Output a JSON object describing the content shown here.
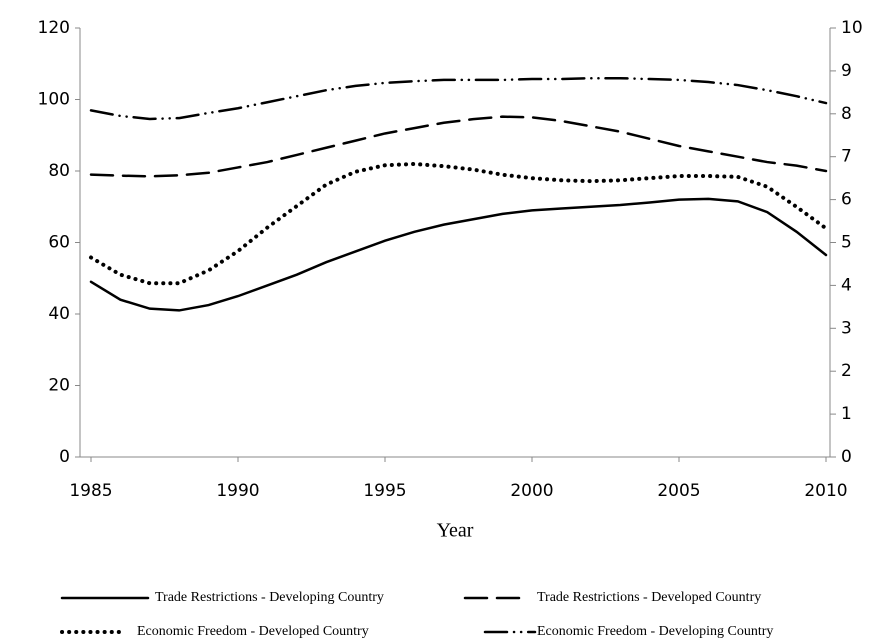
{
  "chart_data": {
    "type": "line",
    "x_label": "Year",
    "x": [
      1985,
      1986,
      1987,
      1988,
      1989,
      1990,
      1991,
      1992,
      1993,
      1994,
      1995,
      1996,
      1997,
      1998,
      1999,
      2000,
      2001,
      2002,
      2003,
      2004,
      2005,
      2006,
      2007,
      2008,
      2009,
      2010
    ],
    "xlim": [
      1985,
      2010
    ],
    "xticks": [
      1985,
      1990,
      1995,
      2000,
      2005,
      2010
    ],
    "ylim": [
      0,
      120
    ],
    "yticks": [
      0,
      20,
      40,
      60,
      80,
      100,
      120
    ],
    "y2lim": [
      0,
      10
    ],
    "y2ticks": [
      0,
      1,
      2,
      3,
      4,
      5,
      6,
      7,
      8,
      9,
      10
    ],
    "series": [
      {
        "name": "Trade Restrictions - Developing Country",
        "color": "#000000",
        "style": "solid",
        "axis": "y",
        "values": [
          49,
          44,
          41.5,
          41,
          42.5,
          45,
          48,
          51,
          54.5,
          57.5,
          60.5,
          63,
          65,
          66.5,
          68,
          69,
          69.5,
          70,
          70.5,
          71.2,
          72,
          72.2,
          71.5,
          68.5,
          63,
          56.5
        ]
      },
      {
        "name": "Trade Restrictions - Developed Country",
        "color": "#000000",
        "style": "dash",
        "axis": "y",
        "values": [
          79,
          78.7,
          78.5,
          78.8,
          79.5,
          81,
          82.5,
          84.5,
          86.5,
          88.5,
          90.5,
          92,
          93.5,
          94.5,
          95.2,
          95,
          94,
          92.5,
          91,
          89,
          87,
          85.5,
          84,
          82.5,
          81.5,
          80
        ]
      },
      {
        "name": "Economic Freedom - Developed Country",
        "color": "#000000",
        "style": "dot",
        "axis": "y2",
        "values": [
          4.65,
          4.25,
          4.05,
          4.05,
          4.35,
          4.8,
          5.35,
          5.85,
          6.35,
          6.65,
          6.8,
          6.83,
          6.78,
          6.7,
          6.58,
          6.5,
          6.45,
          6.43,
          6.45,
          6.5,
          6.55,
          6.55,
          6.53,
          6.3,
          5.83,
          5.33
        ]
      },
      {
        "name": "Economic Freedom - Developing Country",
        "color": "#000000",
        "style": "dashdot",
        "axis": "y2",
        "values": [
          8.08,
          7.95,
          7.88,
          7.9,
          8.02,
          8.13,
          8.27,
          8.41,
          8.55,
          8.65,
          8.72,
          8.76,
          8.79,
          8.79,
          8.79,
          8.81,
          8.81,
          8.83,
          8.83,
          8.81,
          8.79,
          8.74,
          8.67,
          8.55,
          8.41,
          8.25
        ]
      }
    ]
  }
}
